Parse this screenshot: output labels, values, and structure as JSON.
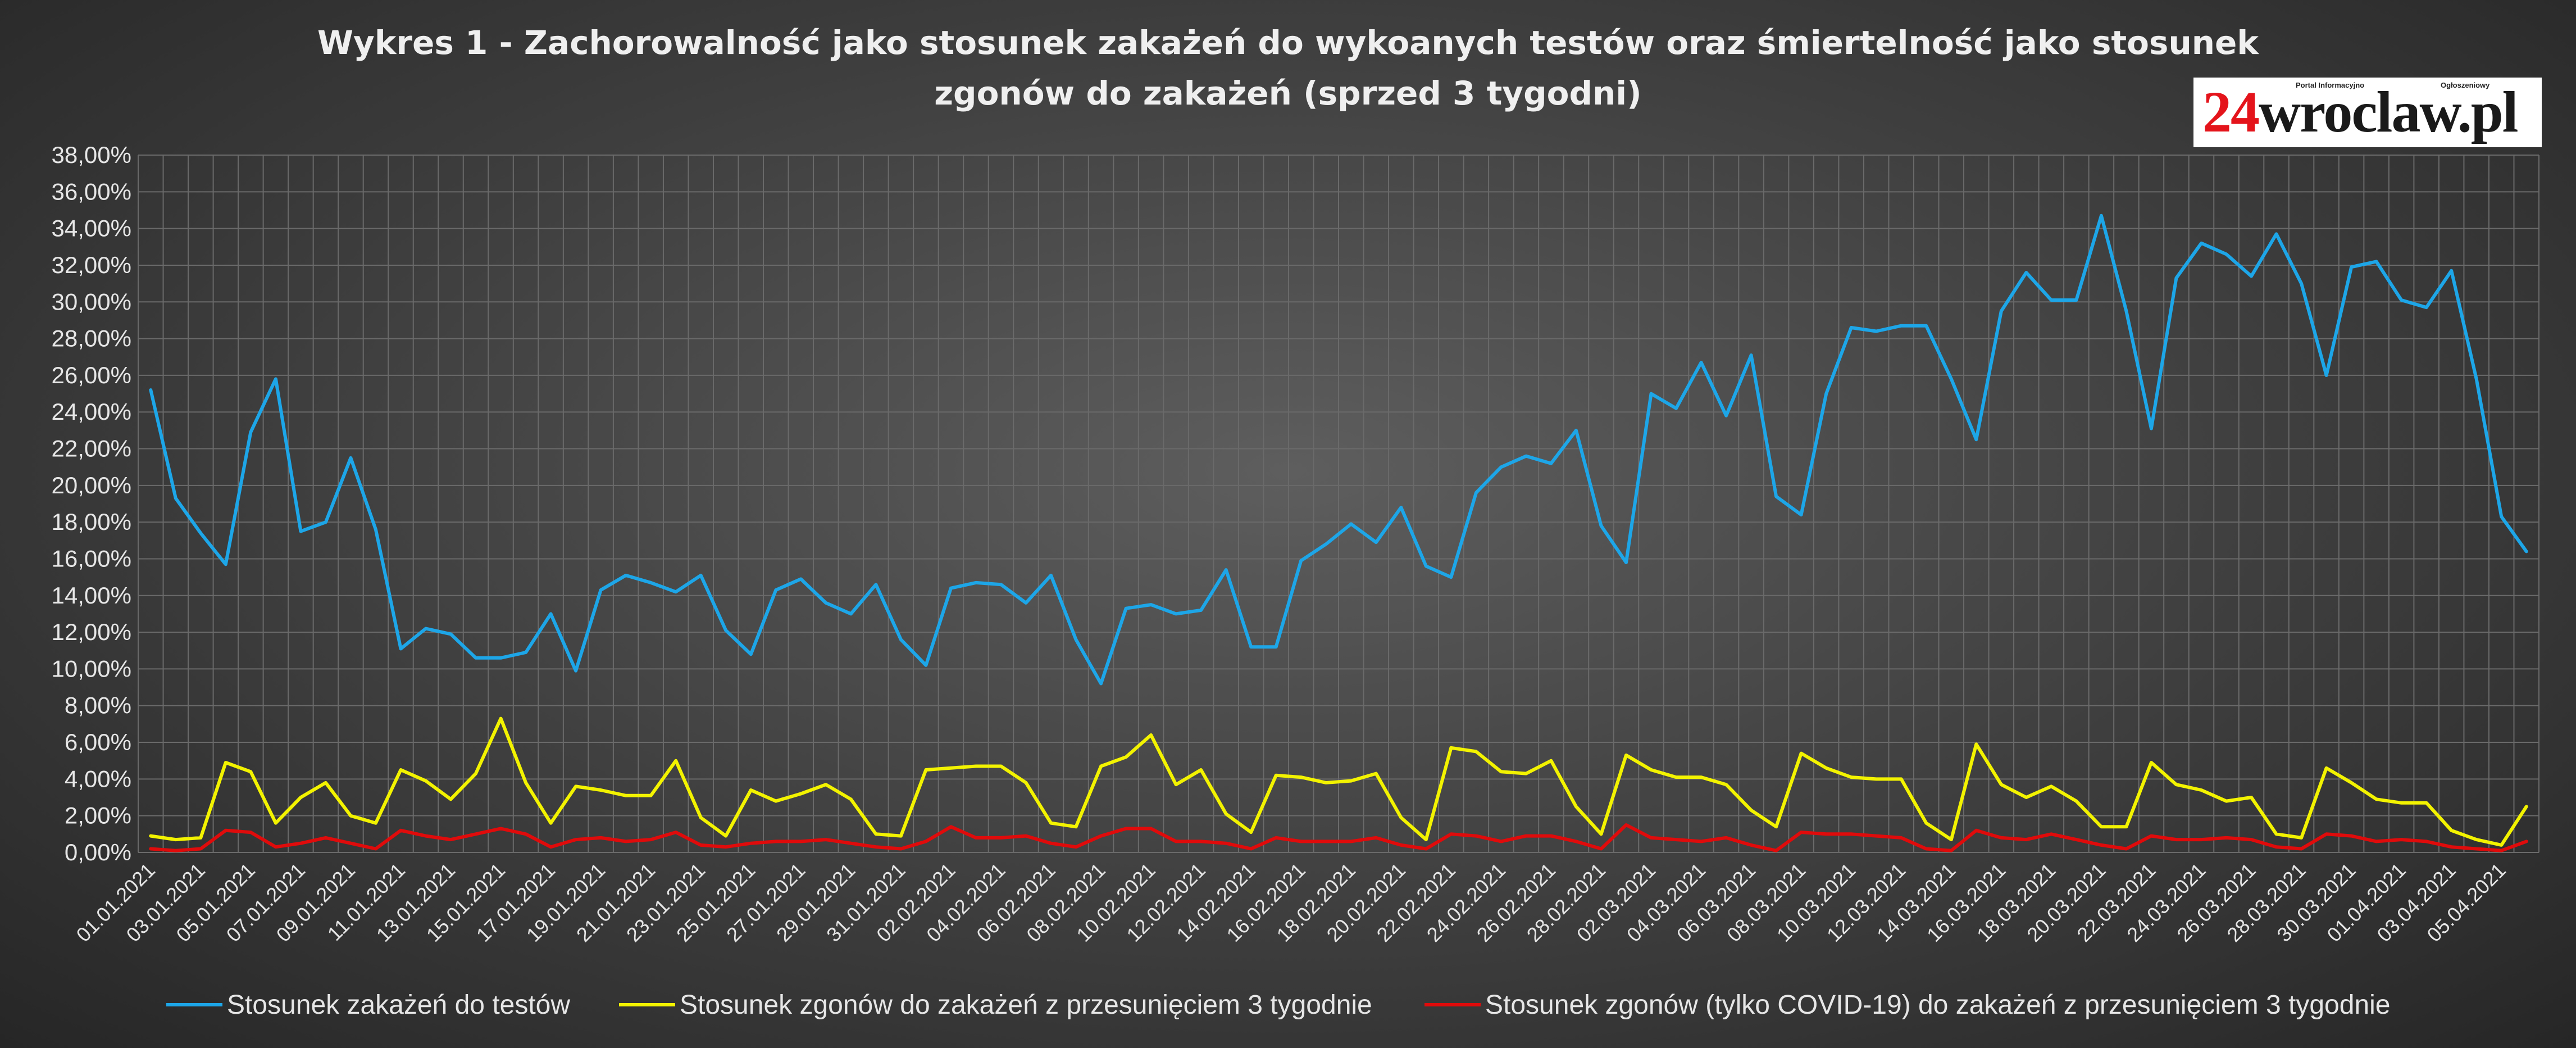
{
  "title_line1": "Wykres 1 - Zachorowalność jako stosunek zakażeń do wykoanych testów oraz śmiertelność jako stosunek",
  "title_line2": "zgonów do zakażeń (sprzed 3 tygodni)",
  "logo": {
    "num": "24",
    "text": "wroclaw.pl",
    "sub_left": "Portal Informacyjno",
    "sub_right": "Ogłoszeniowy"
  },
  "colors": {
    "series1": "#1da6e8",
    "series2": "#f3f300",
    "series3": "#e00b0b",
    "grid": "#6a6a6a"
  },
  "chart_data": {
    "type": "line",
    "title": "Wykres 1 - Zachorowalność jako stosunek zakażeń do wykoanych testów oraz śmiertelność jako stosunek zgonów do zakażeń (sprzed 3 tygodni)",
    "xlabel": "",
    "ylabel": "",
    "ylim": [
      0,
      38
    ],
    "grid": true,
    "legend": "bottom",
    "y_ticks": [
      "0,00%",
      "2,00%",
      "4,00%",
      "6,00%",
      "8,00%",
      "10,00%",
      "12,00%",
      "14,00%",
      "16,00%",
      "18,00%",
      "20,00%",
      "22,00%",
      "24,00%",
      "26,00%",
      "28,00%",
      "30,00%",
      "32,00%",
      "34,00%",
      "36,00%",
      "38,00%"
    ],
    "x_tick_labels": [
      "01.01.2021",
      "03.01.2021",
      "05.01.2021",
      "07.01.2021",
      "09.01.2021",
      "11.01.2021",
      "13.01.2021",
      "15.01.2021",
      "17.01.2021",
      "19.01.2021",
      "21.01.2021",
      "23.01.2021",
      "25.01.2021",
      "27.01.2021",
      "29.01.2021",
      "31.01.2021",
      "02.02.2021",
      "04.02.2021",
      "06.02.2021",
      "08.02.2021",
      "10.02.2021",
      "12.02.2021",
      "14.02.2021",
      "16.02.2021",
      "18.02.2021",
      "20.02.2021",
      "22.02.2021",
      "24.02.2021",
      "26.02.2021",
      "28.02.2021",
      "02.03.2021",
      "04.03.2021",
      "06.03.2021",
      "08.03.2021",
      "10.03.2021",
      "12.03.2021",
      "14.03.2021",
      "16.03.2021",
      "18.03.2021",
      "20.03.2021",
      "22.03.2021",
      "24.03.2021",
      "26.03.2021",
      "28.03.2021",
      "30.03.2021",
      "01.04.2021",
      "03.04.2021",
      "05.04.2021"
    ],
    "series": [
      {
        "name": "Stosunek zakażeń do testów",
        "values": [
          25.2,
          19.3,
          17.4,
          15.7,
          22.9,
          25.8,
          17.5,
          18.0,
          21.5,
          17.6,
          11.1,
          12.2,
          11.9,
          10.6,
          10.6,
          10.9,
          13.0,
          9.9,
          14.3,
          15.1,
          14.7,
          14.2,
          15.1,
          12.1,
          10.8,
          14.3,
          14.9,
          13.6,
          13.0,
          14.6,
          11.6,
          10.2,
          14.4,
          14.7,
          14.6,
          13.6,
          15.1,
          11.6,
          9.2,
          13.3,
          13.5,
          13.0,
          13.2,
          15.4,
          11.2,
          11.2,
          15.9,
          16.8,
          17.9,
          16.9,
          18.8,
          15.6,
          15.0,
          19.6,
          21.0,
          21.6,
          21.2,
          23.0,
          17.8,
          15.8,
          25.0,
          24.2,
          26.7,
          23.8,
          27.1,
          19.4,
          18.4,
          25.0,
          28.6,
          28.4,
          28.7,
          28.7,
          25.8,
          22.5,
          29.5,
          31.6,
          30.1,
          30.1,
          34.7,
          29.5,
          23.1,
          31.3,
          33.2,
          32.6,
          31.4,
          33.7,
          31.0,
          26.0,
          31.9,
          32.2,
          30.1,
          29.7,
          31.7,
          25.8,
          18.3,
          16.4
        ]
      },
      {
        "name": "Stosunek zgonów do zakażeń z przesunięciem 3 tygodnie",
        "values": [
          0.9,
          0.7,
          0.8,
          4.9,
          4.4,
          1.6,
          3.0,
          3.8,
          2.0,
          1.6,
          4.5,
          3.9,
          2.9,
          4.3,
          7.3,
          3.8,
          1.6,
          3.6,
          3.4,
          3.1,
          3.1,
          5.0,
          1.9,
          0.9,
          3.4,
          2.8,
          3.2,
          3.7,
          2.9,
          1.0,
          0.9,
          4.5,
          4.6,
          4.7,
          4.7,
          3.8,
          1.6,
          1.4,
          4.7,
          5.2,
          6.4,
          3.7,
          4.5,
          2.1,
          1.1,
          4.2,
          4.1,
          3.8,
          3.9,
          4.3,
          1.9,
          0.7,
          5.7,
          5.5,
          4.4,
          4.3,
          5.0,
          2.5,
          1.0,
          5.3,
          4.5,
          4.1,
          4.1,
          3.7,
          2.3,
          1.4,
          5.4,
          4.6,
          4.1,
          4.0,
          4.0,
          1.6,
          0.7,
          5.9,
          3.7,
          3.0,
          3.6,
          2.8,
          1.4,
          1.4,
          4.9,
          3.7,
          3.4,
          2.8,
          3.0,
          1.0,
          0.8,
          4.6,
          3.8,
          2.9,
          2.7,
          2.7,
          1.2,
          0.7,
          0.4,
          2.5
        ]
      },
      {
        "name": "Stosunek zgonów (tylko COVID-19) do zakażeń z przesunięciem 3 tygodnie",
        "values": [
          0.2,
          0.1,
          0.2,
          1.2,
          1.1,
          0.3,
          0.5,
          0.8,
          0.5,
          0.2,
          1.2,
          0.9,
          0.7,
          1.0,
          1.3,
          1.0,
          0.3,
          0.7,
          0.8,
          0.6,
          0.7,
          1.1,
          0.4,
          0.3,
          0.5,
          0.6,
          0.6,
          0.7,
          0.5,
          0.3,
          0.2,
          0.6,
          1.4,
          0.8,
          0.8,
          0.9,
          0.5,
          0.3,
          0.9,
          1.3,
          1.3,
          0.6,
          0.6,
          0.5,
          0.2,
          0.8,
          0.6,
          0.6,
          0.6,
          0.8,
          0.4,
          0.2,
          1.0,
          0.9,
          0.6,
          0.9,
          0.9,
          0.6,
          0.2,
          1.5,
          0.8,
          0.7,
          0.6,
          0.8,
          0.4,
          0.1,
          1.1,
          1.0,
          1.0,
          0.9,
          0.8,
          0.2,
          0.1,
          1.2,
          0.8,
          0.7,
          1.0,
          0.7,
          0.4,
          0.2,
          0.9,
          0.7,
          0.7,
          0.8,
          0.7,
          0.3,
          0.2,
          1.0,
          0.9,
          0.6,
          0.7,
          0.6,
          0.3,
          0.2,
          0.1,
          0.6
        ]
      }
    ]
  }
}
